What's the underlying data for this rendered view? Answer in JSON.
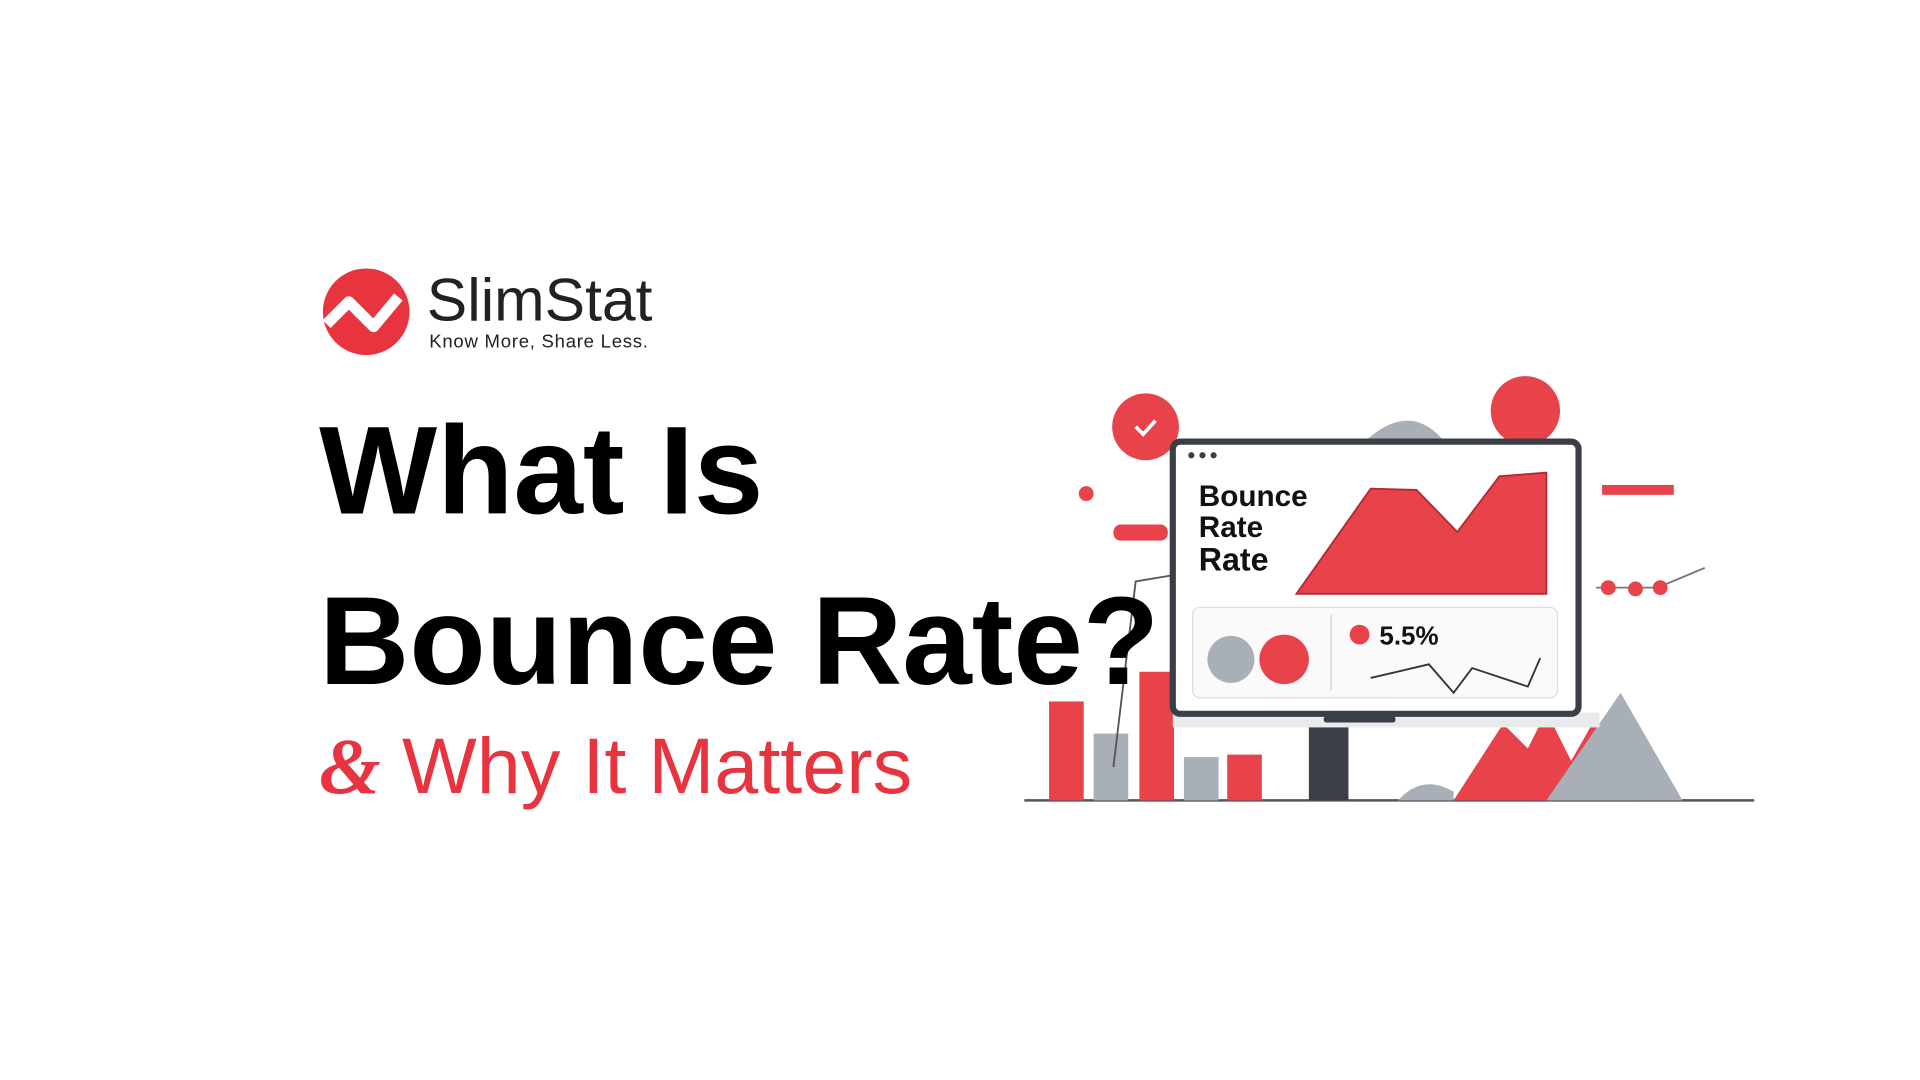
{
  "logo": {
    "name": "SlimStat",
    "tagline": "Know More, Share Less."
  },
  "heading": {
    "line1": "What Is",
    "line2": "Bounce Rate?"
  },
  "subheading": {
    "ampersand": "&",
    "text": "Why It Matters"
  },
  "illustration": {
    "screen_title": [
      "Bounce",
      "Rate",
      "Rate"
    ],
    "metric": "5.5%"
  }
}
